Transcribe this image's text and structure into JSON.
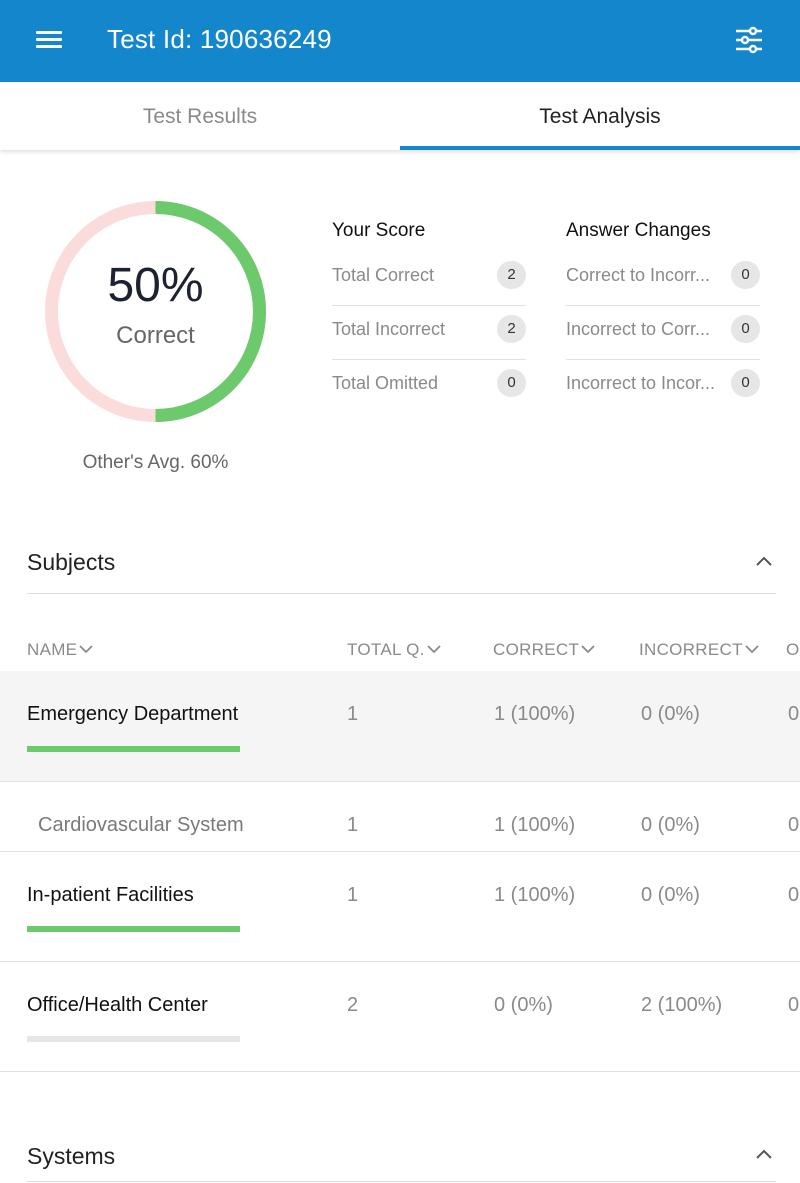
{
  "header": {
    "title": "Test Id: 190636249"
  },
  "tabs": [
    {
      "label": "Test Results",
      "active": false
    },
    {
      "label": "Test Analysis",
      "active": true
    }
  ],
  "score_chart": {
    "percent_label": "50%",
    "caption": "Correct",
    "fraction_correct": 0.5,
    "others_avg": "Other's Avg. 60%",
    "colors": {
      "correct": "#6cc96c",
      "remaining": "#fbdcdc"
    }
  },
  "your_score": {
    "title": "Your Score",
    "items": [
      {
        "label": "Total Correct",
        "value": "2"
      },
      {
        "label": "Total Incorrect",
        "value": "2"
      },
      {
        "label": "Total Omitted",
        "value": "0"
      }
    ]
  },
  "answer_changes": {
    "title": "Answer Changes",
    "items": [
      {
        "label": "Correct to Incorr...",
        "value": "0"
      },
      {
        "label": "Incorrect to Corr...",
        "value": "0"
      },
      {
        "label": "Incorrect to Incor...",
        "value": "0"
      }
    ]
  },
  "subjects": {
    "title": "Subjects",
    "columns": [
      "NAME",
      "TOTAL Q.",
      "CORRECT",
      "INCORRECT",
      "O"
    ],
    "rows": [
      {
        "name": "Emergency Department",
        "total": "1",
        "correct": "1 (100%)",
        "incorrect": "0 (0%)",
        "omitted": "0",
        "bar_fraction": 1.0,
        "highlight": true
      },
      {
        "name": "Cardiovascular System",
        "total": "1",
        "correct": "1 (100%)",
        "incorrect": "0 (0%)",
        "omitted": "0",
        "sub": true
      },
      {
        "name": "In-patient Facilities",
        "total": "1",
        "correct": "1 (100%)",
        "incorrect": "0 (0%)",
        "omitted": "0",
        "bar_fraction": 1.0
      },
      {
        "name": "Office/Health Center",
        "total": "2",
        "correct": "0 (0%)",
        "incorrect": "2 (100%)",
        "omitted": "0",
        "bar_fraction": 0.0
      }
    ]
  },
  "systems": {
    "title": "Systems"
  },
  "colors": {
    "accent": "#1487cc",
    "bar_fill": "#6cc96c",
    "bar_track": "#e6e6e6"
  }
}
